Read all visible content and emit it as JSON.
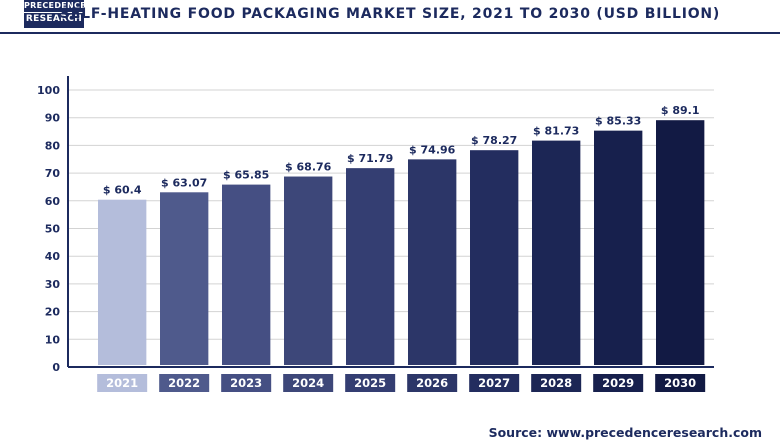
{
  "logo": {
    "line1": "PRECEDENCE",
    "line2": "RESEARCH"
  },
  "chart_data": {
    "type": "bar",
    "title": "SELF-HEATING FOOD PACKAGING MARKET SIZE, 2021 TO 2030 (USD BILLION)",
    "categories": [
      "2021",
      "2022",
      "2023",
      "2024",
      "2025",
      "2026",
      "2027",
      "2028",
      "2029",
      "2030"
    ],
    "values": [
      60.4,
      63.07,
      65.85,
      68.76,
      71.79,
      74.96,
      78.27,
      81.73,
      85.33,
      89.1
    ],
    "data_labels": [
      "$ 60.4",
      "$ 63.07",
      "$ 65.85",
      "$ 68.76",
      "$ 71.79",
      "$ 74.96",
      "$ 78.27",
      "$ 81.73",
      "$ 85.33",
      "$ 89.1"
    ],
    "bar_colors": [
      "#b4bddb",
      "#4f5a8c",
      "#454f83",
      "#3d4779",
      "#343e72",
      "#2c3668",
      "#232d5f",
      "#1c2655",
      "#17204d",
      "#121a44"
    ],
    "ylim": [
      0,
      100
    ],
    "yticks": [
      0,
      10,
      20,
      30,
      40,
      50,
      60,
      70,
      80,
      90,
      100
    ],
    "grid": true,
    "xlabel": "",
    "ylabel": ""
  },
  "source": "Source: www.precedenceresearch.com"
}
